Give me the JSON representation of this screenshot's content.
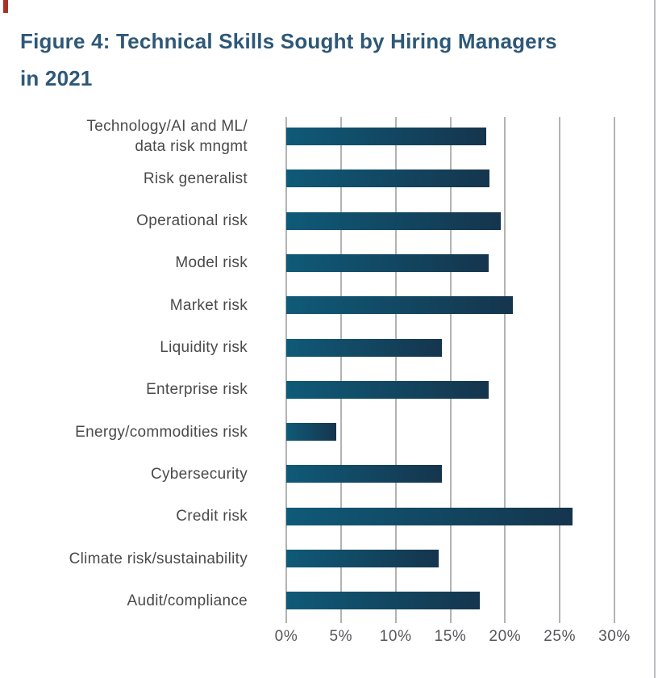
{
  "figure": {
    "title_line1": "Figure 4: Technical Skills Sought by Hiring Managers",
    "title_line2": "in 2021"
  },
  "colors": {
    "title_text": "#2e5878",
    "bar_gradient_start": "#0f5a78",
    "bar_gradient_end": "#15354d",
    "gridline": "#b3b3b3",
    "category_text": "#4a4a4a",
    "axis_text": "#55565a",
    "corner_mark": "#ab3126",
    "page_border": "#bcbfc2"
  },
  "chart_data": {
    "type": "bar",
    "orientation": "horizontal",
    "title": "Figure 4: Technical Skills Sought by Hiring Managers in 2021",
    "categories": [
      "Technology/AI and ML/\ndata risk mngmt",
      "Risk generalist",
      "Operational risk",
      "Model risk",
      "Market risk",
      "Liquidity risk",
      "Enterprise risk",
      "Energy/commodities risk",
      "Cybersecurity",
      "Credit risk",
      "Climate risk/sustainability",
      "Audit/compliance"
    ],
    "values": [
      18.3,
      18.6,
      19.6,
      18.5,
      20.7,
      14.2,
      18.5,
      4.6,
      14.2,
      26.2,
      13.9,
      17.7
    ],
    "value_unit": "%",
    "xlim": [
      0,
      30
    ],
    "x_ticks": [
      "0%",
      "5%",
      "10%",
      "15%",
      "20%",
      "25%",
      "30%"
    ],
    "grid": true,
    "legend": false
  }
}
